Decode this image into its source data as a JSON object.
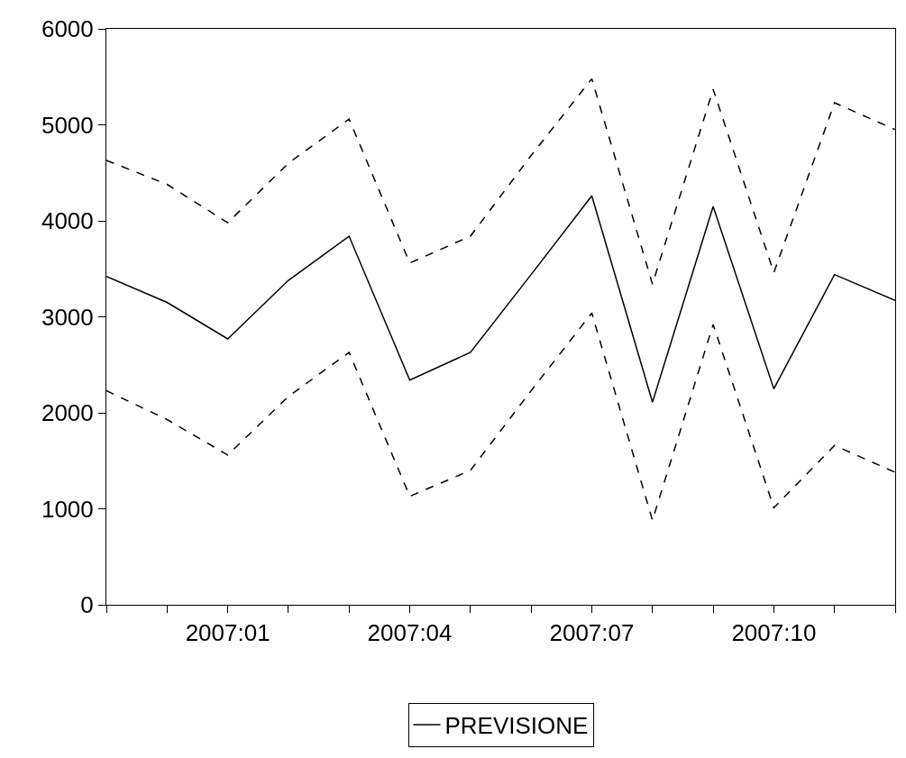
{
  "chart_data": {
    "type": "line",
    "categories": [
      null,
      null,
      "2007:01",
      null,
      null,
      "2007:04",
      null,
      null,
      "2007:07",
      null,
      null,
      "2007:10",
      null,
      null
    ],
    "series": [
      {
        "name": "PREVISIONE",
        "color": "#000000",
        "line_style": "solid",
        "values": [
          3420,
          3150,
          2770,
          3380,
          3840,
          2340,
          2630,
          3440,
          4260,
          2110,
          4150,
          2250,
          3440,
          3170
        ]
      },
      {
        "color": "#000000",
        "line_style": "dashed",
        "values": [
          4630,
          4380,
          3980,
          4600,
          5060,
          3560,
          3840,
          4680,
          5480,
          3340,
          5370,
          3460,
          5230,
          4950
        ]
      },
      {
        "color": "#000000",
        "line_style": "dashed",
        "values": [
          2230,
          1930,
          1560,
          2170,
          2630,
          1130,
          1400,
          2230,
          3040,
          880,
          2920,
          1010,
          1660,
          1380
        ]
      }
    ],
    "ylim": [
      0,
      6000
    ],
    "yticks": [
      0,
      1000,
      2000,
      3000,
      4000,
      5000,
      6000
    ],
    "legend": "bottom",
    "marker": "none"
  }
}
